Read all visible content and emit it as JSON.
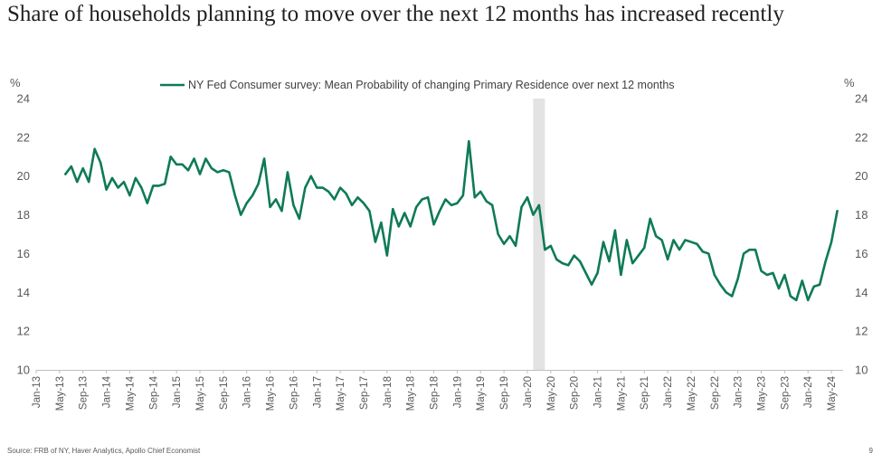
{
  "slide": {
    "title": "Share of households planning to move over the next 12 months has increased recently",
    "source": "Source: FRB of NY, Haver Analytics, Apollo Chief Economist",
    "page_number": "9"
  },
  "chart_data": {
    "type": "line",
    "title": "Share of households planning to move over the next 12 months has increased recently",
    "ylabel_left": "%",
    "ylabel_right": "%",
    "ylim": [
      10,
      24
    ],
    "yticks": [
      10,
      12,
      14,
      16,
      18,
      20,
      22,
      24
    ],
    "xlim": [
      "2013-01",
      "2024-07"
    ],
    "xticks": [
      "Jan-13",
      "May-13",
      "Sep-13",
      "Jan-14",
      "May-14",
      "Sep-14",
      "Jan-15",
      "May-15",
      "Sep-15",
      "Jan-16",
      "May-16",
      "Sep-16",
      "Jan-17",
      "May-17",
      "Sep-17",
      "Jan-18",
      "May-18",
      "Sep-18",
      "Jan-19",
      "May-19",
      "Sep-19",
      "Jan-20",
      "May-20",
      "Sep-20",
      "Jan-21",
      "May-21",
      "Sep-21",
      "Jan-22",
      "May-22",
      "Sep-22",
      "Jan-23",
      "May-23",
      "Sep-23",
      "Jan-24",
      "May-24"
    ],
    "recession_shading": [
      {
        "start": "2020-02",
        "end": "2020-04"
      }
    ],
    "legend_position": "top-center",
    "grid": false,
    "series": [
      {
        "name": "NY Fed Consumer survey: Mean Probability of changing Primary Residence over next 12 months",
        "color": "#0e7a58",
        "start": "2013-06",
        "values": [
          20.1,
          20.5,
          19.7,
          20.4,
          19.7,
          21.4,
          20.7,
          19.3,
          19.9,
          19.4,
          19.7,
          19.0,
          19.9,
          19.4,
          18.6,
          19.5,
          19.5,
          19.6,
          21.0,
          20.6,
          20.6,
          20.3,
          20.9,
          20.1,
          20.9,
          20.4,
          20.2,
          20.3,
          20.2,
          19.0,
          18.0,
          18.6,
          19.0,
          19.6,
          20.9,
          18.4,
          18.8,
          18.2,
          20.2,
          18.5,
          17.8,
          19.4,
          20.0,
          19.4,
          19.4,
          19.2,
          18.8,
          19.4,
          19.1,
          18.5,
          18.9,
          18.6,
          18.2,
          16.6,
          17.6,
          15.9,
          18.3,
          17.4,
          18.1,
          17.4,
          18.4,
          18.8,
          18.9,
          17.5,
          18.2,
          18.8,
          18.5,
          18.6,
          19.0,
          21.8,
          18.9,
          19.2,
          18.7,
          18.5,
          17.0,
          16.5,
          16.9,
          16.4,
          18.4,
          18.9,
          18.0,
          18.5,
          16.2,
          16.4,
          15.7,
          15.5,
          15.4,
          15.9,
          15.6,
          15.0,
          14.4,
          15.0,
          16.6,
          15.6,
          17.2,
          14.9,
          16.7,
          15.5,
          15.9,
          16.3,
          17.8,
          16.9,
          16.7,
          15.7,
          16.7,
          16.2,
          16.7,
          16.6,
          16.5,
          16.1,
          16.0,
          14.9,
          14.4,
          14.0,
          13.8,
          14.7,
          16.0,
          16.2,
          16.2,
          15.1,
          14.9,
          15.0,
          14.2,
          14.9,
          13.8,
          13.6,
          14.6,
          13.6,
          14.3,
          14.4,
          15.6,
          16.6,
          18.2
        ]
      }
    ]
  }
}
